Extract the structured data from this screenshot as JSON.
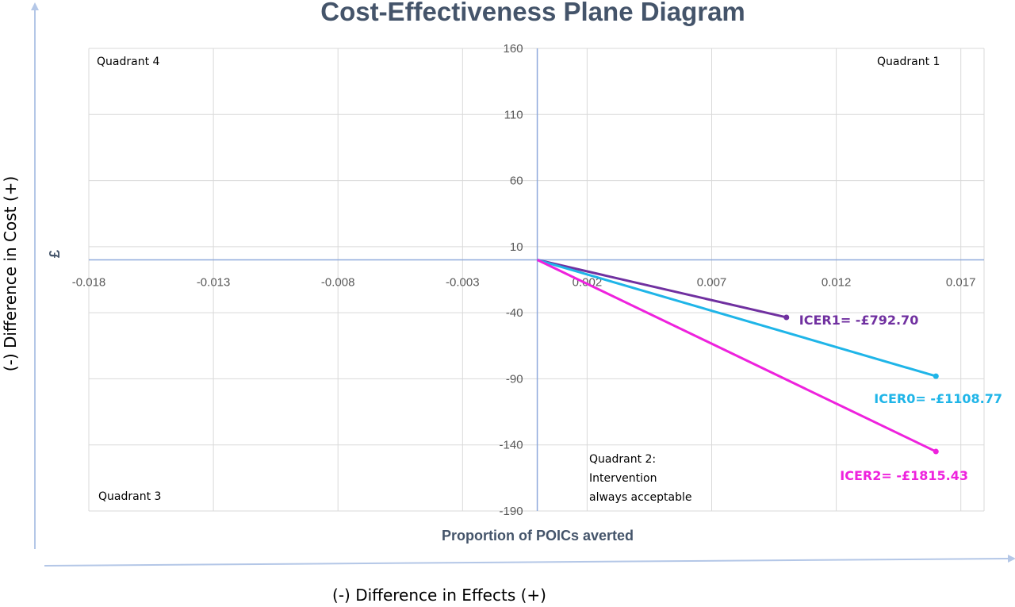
{
  "chart_data": {
    "type": "scatter",
    "title": "Cost-Effectiveness Plane Diagram",
    "xlabel": "Proportion of POICs averted",
    "ylabel": "£",
    "xlim": [
      -0.018,
      0.018
    ],
    "ylim": [
      -190,
      160
    ],
    "x_ticks": [
      "-0.018",
      "-0.013",
      "-0.008",
      "-0.003",
      "0.002",
      "0.007",
      "0.012",
      "0.017"
    ],
    "y_ticks": [
      "160",
      "110",
      "60",
      "10",
      "-40",
      "-90",
      "-140",
      "-190"
    ],
    "grid": true,
    "series": [
      {
        "label": "ICER1= -£792.70",
        "color": "#7030a0",
        "points": [
          [
            0,
            0
          ],
          [
            0.01,
            -43.5
          ]
        ]
      },
      {
        "label": "ICER0= -£1108.77",
        "color": "#1fb5e8",
        "points": [
          [
            0,
            0
          ],
          [
            0.016,
            -88
          ]
        ]
      },
      {
        "label": "ICER2= -£1815.43",
        "color": "#ee22dd",
        "points": [
          [
            0,
            0
          ],
          [
            0.016,
            -145
          ]
        ]
      }
    ],
    "quadrant_labels": {
      "q1": "Quadrant 1",
      "q2": [
        "Quadrant 2:",
        "Intervention",
        "always acceptable"
      ],
      "q3": "Quadrant 3",
      "q4": "Quadrant 4"
    },
    "outer_axes": {
      "y_label": "(-) Difference in Cost (+)",
      "x_label": "(-) Difference in Effects (+)"
    }
  }
}
